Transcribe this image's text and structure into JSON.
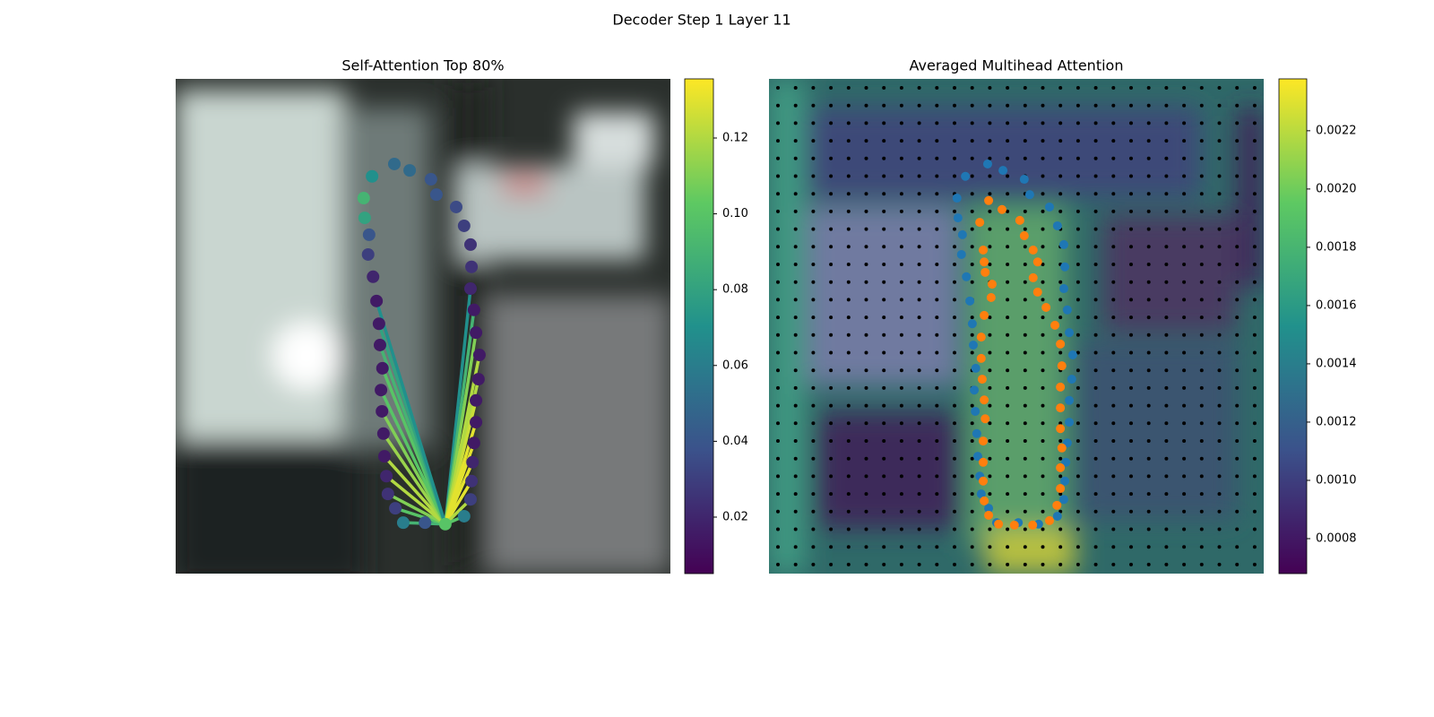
{
  "title": "Decoder Step 1 Layer 11",
  "chart_data": [
    {
      "type": "attention-scatter",
      "title": "Self-Attention Top 80%",
      "xlim": [
        0,
        100
      ],
      "ylim": [
        100,
        0
      ],
      "colormap": "viridis",
      "clim": [
        0.0051,
        0.1356
      ],
      "cticks": [
        0.02,
        0.04,
        0.06,
        {
          "value": 0.1,
          "label": "0.10"
        },
        0.08,
        0.12
      ],
      "series": [
        {
          "x": [
            39.7,
            44.2,
            47.3,
            51.6,
            52.7,
            56.7,
            58.3,
            59.6,
            59.8,
            59.6,
            60.3,
            60.7,
            61.4,
            61.2,
            60.7,
            60.7,
            60.3,
            60.0,
            59.8,
            59.6,
            58.3,
            54.5,
            50.4,
            46.0,
            44.4,
            42.9,
            42.6,
            42.2,
            42.0,
            41.7,
            41.5,
            41.8,
            41.3,
            41.1,
            40.6,
            39.9,
            38.9,
            39.1,
            38.2,
            38.0
          ],
          "y": [
            19.7,
            17.2,
            18.5,
            20.3,
            23.4,
            25.9,
            29.7,
            33.5,
            38.0,
            42.4,
            46.7,
            51.3,
            55.8,
            60.7,
            65.0,
            69.4,
            73.6,
            77.5,
            81.3,
            85.0,
            88.4,
            90.0,
            89.7,
            89.7,
            86.8,
            83.9,
            80.3,
            76.3,
            71.7,
            67.2,
            62.9,
            58.5,
            53.8,
            49.5,
            44.9,
            40.0,
            35.5,
            31.5,
            28.1,
            24.1
          ],
          "values": [
            0.07,
            0.05,
            0.05,
            0.04,
            0.04,
            0.035,
            0.03,
            0.025,
            0.025,
            0.02,
            0.015,
            0.015,
            0.015,
            0.015,
            0.015,
            0.015,
            0.015,
            0.02,
            0.025,
            0.03,
            0.06,
            0.1,
            0.04,
            0.06,
            0.03,
            0.025,
            0.02,
            0.015,
            0.015,
            0.015,
            0.015,
            0.015,
            0.015,
            0.015,
            0.015,
            0.02,
            0.03,
            0.04,
            0.08,
            0.09
          ],
          "line_values": [
            null,
            null,
            null,
            null,
            null,
            null,
            null,
            null,
            null,
            0.07,
            0.09,
            0.11,
            0.12,
            0.12,
            0.125,
            0.13,
            0.13,
            0.13,
            0.13,
            0.12,
            0.1,
            null,
            0.06,
            0.09,
            0.1,
            0.11,
            0.12,
            0.12,
            0.115,
            0.11,
            0.1,
            0.1,
            0.09,
            0.08,
            0.07,
            null,
            null,
            null,
            null,
            null
          ],
          "source": 21
        }
      ]
    },
    {
      "type": "contour-scatter",
      "title": "Averaged Multihead Attention",
      "xlim": [
        0,
        100
      ],
      "ylim": [
        100,
        0
      ],
      "colormap": "viridis",
      "clim": [
        0.00068,
        0.002378
      ],
      "cticks": [
        0.0008,
        {
          "value": 0.001,
          "label": "0.0010"
        },
        0.0012,
        0.0014,
        0.0016,
        0.0018,
        {
          "value": 0.002,
          "label": "0.0020"
        },
        0.0022
      ],
      "series": [
        {
          "color": "#1f77b4",
          "x": [
            39.7,
            44.2,
            47.3,
            51.6,
            52.7,
            56.7,
            58.3,
            59.6,
            59.8,
            59.6,
            60.3,
            60.7,
            61.4,
            61.2,
            60.7,
            60.7,
            60.3,
            60.0,
            59.8,
            59.6,
            58.3,
            54.5,
            50.4,
            46.0,
            44.4,
            42.9,
            42.6,
            42.2,
            42.0,
            41.7,
            41.5,
            41.8,
            41.3,
            41.1,
            40.6,
            39.9,
            38.9,
            39.1,
            38.2,
            38.0
          ],
          "y": [
            19.7,
            17.2,
            18.5,
            20.3,
            23.4,
            25.9,
            29.7,
            33.5,
            38.0,
            42.4,
            46.7,
            51.3,
            55.8,
            60.7,
            65.0,
            69.4,
            73.6,
            77.5,
            81.3,
            85.0,
            88.4,
            90.0,
            89.7,
            89.7,
            86.8,
            83.9,
            80.3,
            76.3,
            71.7,
            67.2,
            62.9,
            58.5,
            53.8,
            49.5,
            44.9,
            40.0,
            35.5,
            31.5,
            28.1,
            24.1
          ]
        },
        {
          "color": "#ff7f0e",
          "x": [
            44.4,
            47.1,
            50.7,
            51.6,
            53.4,
            54.3,
            53.4,
            54.3,
            56.0,
            57.8,
            58.9,
            59.2,
            58.9,
            58.9,
            58.9,
            59.2,
            58.9,
            58.9,
            58.2,
            56.7,
            53.3,
            49.6,
            46.4,
            44.4,
            43.5,
            43.3,
            43.3,
            43.3,
            43.7,
            43.5,
            43.1,
            42.9,
            42.9,
            43.5,
            44.9,
            45.1,
            43.7,
            43.5,
            43.3,
            42.6
          ],
          "y": [
            24.6,
            26.4,
            28.6,
            31.7,
            34.6,
            37.0,
            40.2,
            43.1,
            46.2,
            49.8,
            53.6,
            58.0,
            62.3,
            66.5,
            70.7,
            74.6,
            78.6,
            82.8,
            86.2,
            89.3,
            90.2,
            90.2,
            90.0,
            88.2,
            85.3,
            81.3,
            77.5,
            73.2,
            68.7,
            64.9,
            60.7,
            56.5,
            52.2,
            47.8,
            44.2,
            41.5,
            39.1,
            37.0,
            34.6,
            29.0
          ]
        }
      ]
    }
  ]
}
